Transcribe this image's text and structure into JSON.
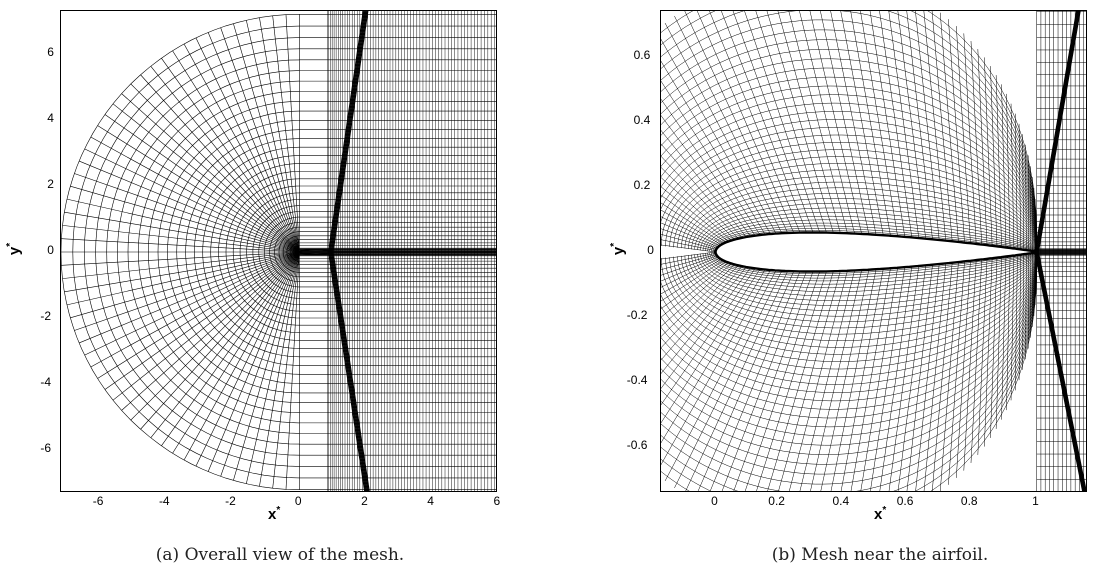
{
  "figure": {
    "panels": [
      {
        "id": "a",
        "caption": "(a)  Overall view of the mesh.",
        "x_axis_label": "x*",
        "y_axis_label": "y*",
        "x_ticks": [
          "-6",
          "-4",
          "-2",
          "0",
          "2",
          "4",
          "6"
        ],
        "y_ticks": [
          "6",
          "4",
          "2",
          "0",
          "-2",
          "-4",
          "-6"
        ],
        "x_range": [
          -7.2,
          6.0
        ],
        "y_range": [
          -7.3,
          7.3
        ]
      },
      {
        "id": "b",
        "caption": "(b)  Mesh near the airfoil.",
        "x_axis_label": "x*",
        "y_axis_label": "y*",
        "x_ticks": [
          "0",
          "0.2",
          "0.4",
          "0.6",
          "0.8",
          "1"
        ],
        "y_ticks": [
          "0.6",
          "0.4",
          "0.2",
          "0",
          "-0.2",
          "-0.4",
          "-0.6"
        ],
        "x_range": [
          -0.17,
          1.16
        ],
        "y_range": [
          -0.74,
          0.74
        ]
      }
    ]
  }
}
